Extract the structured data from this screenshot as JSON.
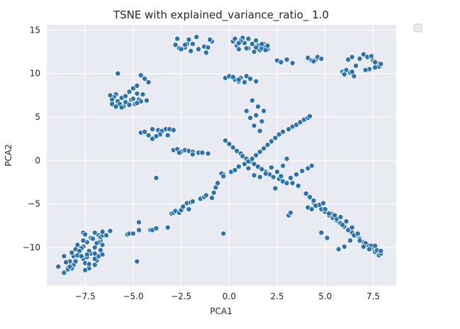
{
  "chart_data": {
    "type": "scatter",
    "title": "TSNE  with explained_variance_ratio_ 1.0",
    "xlabel": "PCA1",
    "ylabel": "PCA2",
    "xlim": [
      -9.5,
      8.7
    ],
    "ylim": [
      -14.4,
      15.6
    ],
    "xticks": [
      -7.5,
      -5.0,
      -2.5,
      0.0,
      2.5,
      5.0,
      7.5
    ],
    "xtick_labels": [
      "−7.5",
      "−5.0",
      "−2.5",
      "0.0",
      "2.5",
      "5.0",
      "7.5"
    ],
    "yticks": [
      -10,
      -5,
      0,
      5,
      10,
      15
    ],
    "ytick_labels": [
      "−10",
      "−5",
      "0",
      "5",
      "10",
      "15"
    ],
    "grid": true,
    "legend": "top-right (empty)",
    "colors": {
      "point": "#2a73ad",
      "point_edge": "#ffffff",
      "axes_bg": "#eaeaf2",
      "grid": "#ffffff"
    },
    "series": [
      {
        "x": [
          -8.9,
          -8.6,
          -8.4,
          -8.3,
          -8.1,
          -8.2,
          -8.0,
          -7.8,
          -7.6,
          -7.5,
          -7.3,
          -7.0,
          -6.9,
          -6.8,
          -6.7,
          -6.6,
          -6.7,
          -6.8,
          -7.0,
          -7.2,
          -7.4,
          -7.6,
          -7.7,
          -7.8,
          -7.9,
          -8.0,
          -8.1,
          -8.2,
          -7.5,
          -7.4,
          -7.2,
          -7.0,
          -6.8,
          -6.7,
          -6.6,
          -6.9,
          -7.3,
          -7.7,
          -8.4,
          -8.5,
          -8.6,
          -7.6,
          -7.5,
          -6.6,
          -6.2,
          -7.0,
          -7.1,
          -7.6,
          -7.3,
          -8.3,
          -8.0,
          -7.9,
          -7.0,
          -6.6,
          -6.7,
          -7.4,
          -7.0,
          -5.3,
          -5.2,
          -4.8,
          -4.1,
          -4.0,
          -3.8,
          -3.2,
          -3.0,
          -2.9,
          -2.8,
          -2.6,
          -2.5,
          -2.4,
          -2.2,
          -2.1,
          -2.0,
          -1.9,
          -1.5,
          -1.3,
          -1.2,
          -0.9,
          -0.8,
          -0.7,
          -0.6,
          -4.7,
          -0.3,
          -5.9,
          -5.8,
          -5.6,
          -5.4,
          -5.3,
          -5.1,
          -5.0,
          -4.9,
          -4.8,
          -4.7,
          -4.6,
          -5.7,
          -5.5,
          -5.2,
          -5.0,
          -4.8,
          -4.5,
          -4.3,
          -4.2,
          -4.4,
          -4.6,
          -5.8,
          -6.0,
          -6.1,
          -6.2,
          -6.1,
          -5.9,
          -5.6,
          -5.4,
          -5.2,
          -4.8,
          -2.8,
          -2.6,
          -2.3,
          -2.1,
          -1.9,
          -1.6,
          -1.3,
          -1.2,
          -1.1,
          -2.0,
          -2.7,
          -2.2,
          -1.7,
          -0.9,
          -1.0,
          -2.3,
          -2.5,
          0.2,
          0.4,
          0.5,
          0.6,
          0.7,
          0.8,
          1.0,
          1.2,
          1.3,
          1.4,
          1.5,
          1.6,
          1.7,
          1.8,
          1.9,
          2.0,
          0.3,
          0.6,
          1.0,
          1.4,
          1.7,
          1.9,
          0.5,
          0.9,
          2.0,
          2.5,
          2.7,
          3.0,
          3.3,
          -0.2,
          0.0,
          0.3,
          0.5,
          0.6,
          0.9,
          4.1,
          4.3,
          4.5,
          4.6,
          4.8,
          4.4,
          5.9,
          6.0,
          6.1,
          6.3,
          6.5,
          6.6,
          6.2,
          6.4,
          6.0,
          6.4,
          7.0,
          7.2,
          7.4,
          7.5,
          7.6,
          7.7,
          7.8,
          7.9,
          7.3,
          7.6,
          7.1,
          6.8,
          7.6,
          -4.6,
          -4.4,
          -4.2,
          -4.0,
          -3.7,
          -3.5,
          -3.3,
          -3.1,
          -2.9,
          -3.6,
          -4.0,
          -3.8,
          -3.2,
          -2.9,
          -2.7,
          -2.5,
          -2.3,
          -2.1,
          -1.9,
          -1.6,
          -1.4,
          -1.1,
          -1.9,
          -2.6,
          -0.2,
          0.0,
          0.2,
          0.4,
          0.6,
          0.7,
          0.9,
          1.1,
          1.3,
          1.5,
          1.7,
          1.9,
          2.1,
          2.3,
          2.6,
          2.8,
          3.0,
          3.2,
          3.5,
          3.8,
          4.1,
          4.3,
          -0.3,
          0.1,
          0.3,
          0.5,
          0.8,
          1.0,
          1.2,
          1.4,
          1.6,
          1.8,
          2.0,
          2.2,
          2.4,
          2.6,
          2.8,
          3.1,
          3.3,
          3.5,
          3.7,
          3.9,
          4.1,
          4.2,
          0.2,
          0.5,
          0.8,
          1.1,
          1.4,
          1.0,
          1.3,
          1.6,
          1.9,
          2.2,
          2.5,
          2.8,
          3.0,
          2.4,
          3.3,
          3.6,
          2.7,
          1.2,
          1.5,
          1.8,
          1.4,
          1.7,
          1.3,
          1.6,
          0.9,
          1.1,
          4.0,
          4.2,
          4.4,
          4.6,
          4.8,
          5.0,
          5.2,
          5.4,
          5.6,
          5.8,
          6.0,
          6.2,
          6.4,
          6.6,
          6.8,
          7.0,
          7.2,
          7.4,
          7.6,
          7.8,
          7.9,
          7.7,
          7.4,
          7.1,
          6.8,
          6.5,
          6.2,
          5.9,
          5.6,
          5.3,
          5.0,
          4.7,
          4.4,
          4.2,
          4.1,
          4.3,
          4.5,
          4.9,
          5.2,
          5.5,
          5.8,
          6.1,
          6.4,
          6.7,
          7.0,
          7.3,
          7.6,
          7.9,
          6.3,
          6.0,
          5.7,
          5.1,
          4.8,
          -0.4,
          -0.3,
          3.1,
          3.2,
          -4.7,
          -5.0,
          -3.8,
          -6.6,
          -6.4
        ],
        "y": [
          -12.2,
          -12.9,
          -12.3,
          -11.6,
          -11.0,
          -10.6,
          -10.2,
          -10.6,
          -11.3,
          -11.8,
          -12.4,
          -12.0,
          -11.5,
          -11.0,
          -10.4,
          -9.7,
          -9.2,
          -8.6,
          -8.3,
          -8.9,
          -9.4,
          -9.9,
          -10.1,
          -10.4,
          -10.9,
          -11.5,
          -12.0,
          -12.4,
          -12.6,
          -11.1,
          -10.7,
          -10.0,
          -9.4,
          -8.8,
          -8.1,
          -9.5,
          -10.4,
          -11.0,
          -12.5,
          -11.7,
          -11.0,
          -8.3,
          -8.5,
          -8.6,
          -8.1,
          -11.3,
          -9.0,
          -9.2,
          -11.9,
          -12.2,
          -11.6,
          -9.7,
          -12.0,
          -10.8,
          -10.3,
          -10.8,
          -10.7,
          -8.5,
          -8.4,
          -11.6,
          -8.0,
          -8.0,
          -7.8,
          -7.7,
          -6.1,
          -6.0,
          -5.8,
          -6.0,
          -5.7,
          -5.3,
          -4.9,
          -5.6,
          -4.8,
          -4.7,
          -4.4,
          -4.2,
          -4.0,
          -4.3,
          -3.7,
          -3.1,
          -2.6,
          -7.1,
          -8.4,
          7.6,
          6.8,
          7.2,
          7.4,
          6.6,
          7.0,
          7.1,
          6.5,
          7.7,
          7.0,
          6.8,
          6.5,
          6.2,
          7.9,
          8.3,
          8.6,
          7.6,
          6.9,
          9.0,
          9.4,
          9.8,
          10.0,
          7.3,
          7.0,
          7.5,
          6.5,
          6.2,
          6.1,
          6.7,
          6.4,
          6.6,
          13.3,
          12.9,
          13.0,
          13.9,
          13.4,
          12.8,
          13.1,
          12.4,
          13.0,
          12.6,
          14.0,
          13.4,
          14.2,
          13.7,
          13.9,
          13.3,
          12.8,
          13.7,
          13.2,
          12.8,
          13.9,
          14.1,
          13.5,
          14.0,
          13.4,
          12.5,
          13.8,
          13.2,
          12.7,
          12.9,
          13.4,
          13.1,
          12.8,
          14.0,
          13.7,
          12.9,
          13.0,
          13.4,
          12.7,
          13.5,
          12.9,
          13.2,
          11.5,
          11.3,
          11.6,
          11.2,
          9.5,
          9.7,
          9.3,
          9.1,
          9.5,
          9.7,
          11.8,
          11.5,
          11.6,
          11.9,
          11.7,
          11.4,
          10.2,
          10.0,
          10.4,
          10.1,
          9.7,
          10.9,
          11.6,
          11.9,
          9.9,
          10.2,
          12.2,
          11.9,
          12.0,
          11.5,
          11.4,
          11.2,
          10.8,
          11.1,
          10.5,
          10.7,
          10.4,
          11.7,
          11.3,
          3.2,
          3.3,
          2.9,
          3.6,
          3.5,
          3.4,
          3.6,
          3.6,
          3.5,
          3.0,
          2.5,
          2.8,
          2.9,
          1.2,
          1.3,
          1.0,
          1.2,
          1.1,
          1.0,
          0.9,
          0.9,
          0.8,
          0.7,
          0.9,
          2.3,
          1.9,
          1.5,
          1.1,
          0.8,
          0.5,
          0.2,
          -0.1,
          -0.4,
          -0.7,
          -1.0,
          -1.3,
          -1.6,
          -1.9,
          -2.1,
          -2.4,
          -2.6,
          -2.0,
          -1.6,
          -1.2,
          -0.9,
          -0.6,
          -1.6,
          -1.3,
          -1.1,
          -0.7,
          -0.4,
          -0.1,
          0.2,
          0.6,
          1.0,
          1.4,
          1.8,
          2.2,
          2.6,
          3.0,
          3.3,
          3.6,
          3.9,
          4.1,
          4.4,
          4.7,
          4.9,
          5.1,
          9.6,
          9.3,
          9.0,
          9.4,
          9.1,
          -0.9,
          -1.7,
          -1.9,
          -1.5,
          -0.8,
          -1.3,
          -0.6,
          0.2,
          -3.2,
          -2.6,
          -2.9,
          -1.8,
          6.9,
          6.2,
          5.7,
          5.2,
          4.5,
          4.0,
          3.4,
          5.7,
          4.9,
          -3.8,
          -4.3,
          -4.8,
          -5.2,
          -5.6,
          -5.9,
          -6.3,
          -6.6,
          -6.9,
          -7.2,
          -7.6,
          -7.9,
          -8.3,
          -8.6,
          -9.0,
          -9.4,
          -9.7,
          -10.1,
          -10.5,
          -10.9,
          -10.7,
          -10.3,
          -9.8,
          -9.5,
          -9.2,
          -8.6,
          -8.0,
          -7.4,
          -6.7,
          -6.1,
          -5.6,
          -5.1,
          -4.6,
          -4.2,
          -5.4,
          -5.6,
          -5.2,
          -4.9,
          -6.1,
          -6.3,
          -6.5,
          -7.0,
          -7.7,
          -8.4,
          -9.9,
          -10.2,
          -9.8,
          -10.4,
          -9.2,
          -9.9,
          -10.2,
          -8.9,
          -8.3,
          -1.5,
          -1.8,
          -6.3,
          -6.0,
          -8.0,
          -8.4,
          -2.0,
          -8.2,
          -8.6
        ]
      }
    ]
  }
}
